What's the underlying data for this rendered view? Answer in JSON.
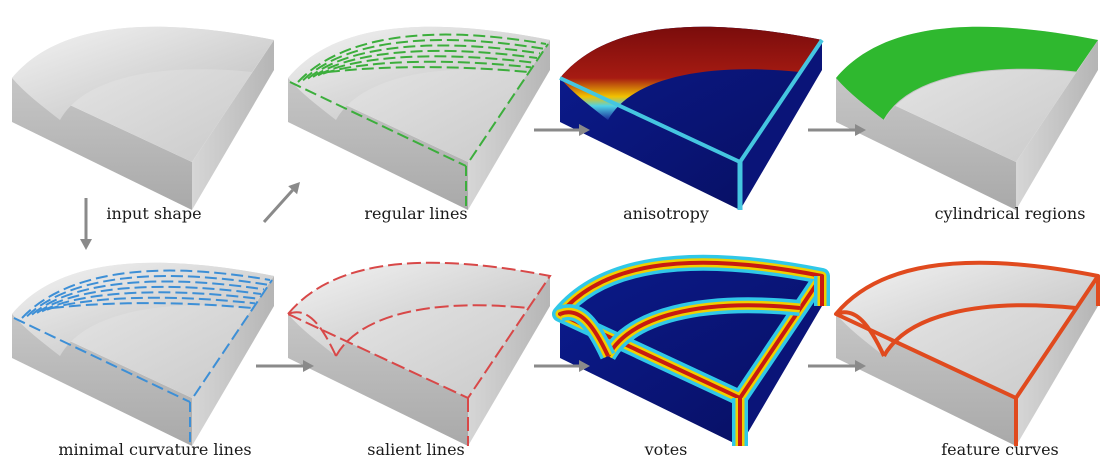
{
  "panels": [
    {
      "key": "input",
      "caption": "input shape",
      "variant": "plain"
    },
    {
      "key": "regular",
      "caption": "regular lines",
      "variant": "dashes",
      "color": "#3cae3c"
    },
    {
      "key": "aniso",
      "caption": "anisotropy",
      "variant": "heat-top"
    },
    {
      "key": "cyl",
      "caption": "cylindrical regions",
      "variant": "green-top",
      "color": "#2fb82f"
    },
    {
      "key": "mincurv",
      "caption": "minimal curvature lines",
      "variant": "dashes",
      "color": "#3d8fd6"
    },
    {
      "key": "salient",
      "caption": "salient lines",
      "variant": "edge-dashes",
      "color": "#d84848"
    },
    {
      "key": "votes",
      "caption": "votes",
      "variant": "heat-edges"
    },
    {
      "key": "feature",
      "caption": "feature curves",
      "variant": "curves",
      "color": "#e04a1e"
    }
  ],
  "colors": {
    "arrow": "#8a8a8a",
    "shape_top": "#e2e2e2",
    "shape_front": "#bdbdbd",
    "shape_side": "#cfcfcf"
  }
}
